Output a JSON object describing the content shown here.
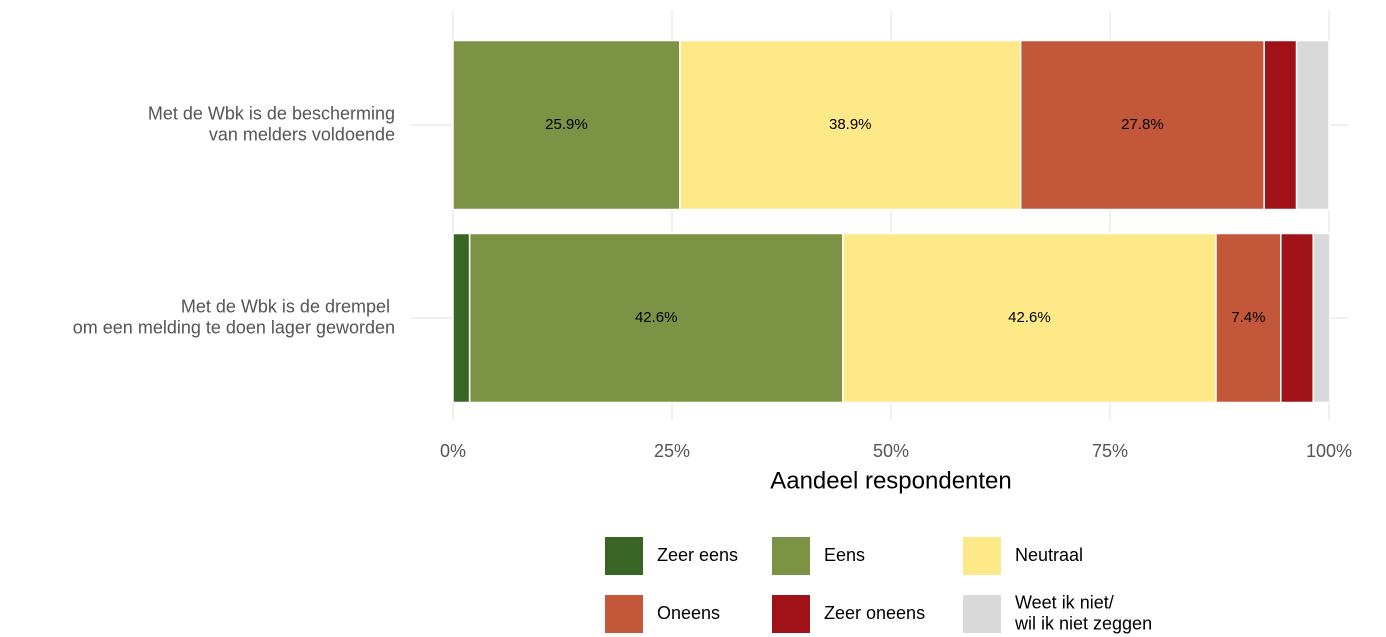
{
  "chart_data": {
    "type": "stacked_bar_horizontal",
    "categories": [
      "Met de Wbk is de bescherming\nvan melders voldoende",
      "Met de Wbk is de drempel \nom een melding te doen lager geworden"
    ],
    "series": [
      {
        "name": "Zeer eens",
        "color": "#386424",
        "values": [
          0,
          1.9
        ],
        "value_labels": [
          null,
          null
        ]
      },
      {
        "name": "Eens",
        "color": "#7c9245",
        "values": [
          25.9,
          42.6
        ],
        "value_labels": [
          "25.9%",
          "42.6%"
        ]
      },
      {
        "name": "Neutraal",
        "color": "#fde987",
        "values": [
          38.9,
          42.6
        ],
        "value_labels": [
          "38.9%",
          "42.6%"
        ]
      },
      {
        "name": "Oneens",
        "color": "#c3573a",
        "values": [
          27.8,
          7.4
        ],
        "value_labels": [
          "27.8%",
          "7.4%"
        ]
      },
      {
        "name": "Zeer oneens",
        "color": "#a11118",
        "values": [
          3.7,
          3.7
        ],
        "value_labels": [
          null,
          null
        ]
      },
      {
        "name": "Weet ik niet/\nwil ik niet zeggen",
        "color": "#d9d9d9",
        "values": [
          3.7,
          1.9
        ],
        "value_labels": [
          null,
          null
        ]
      }
    ],
    "x_label": "Aandeel respondenten",
    "xlim": [
      0,
      100
    ],
    "xticks": [
      {
        "value": 0,
        "label": "0%"
      },
      {
        "value": 25,
        "label": "25%"
      },
      {
        "value": 50,
        "label": "50%"
      },
      {
        "value": 75,
        "label": "75%"
      },
      {
        "value": 100,
        "label": "100%"
      }
    ],
    "grid": true,
    "legend": "bottom"
  }
}
